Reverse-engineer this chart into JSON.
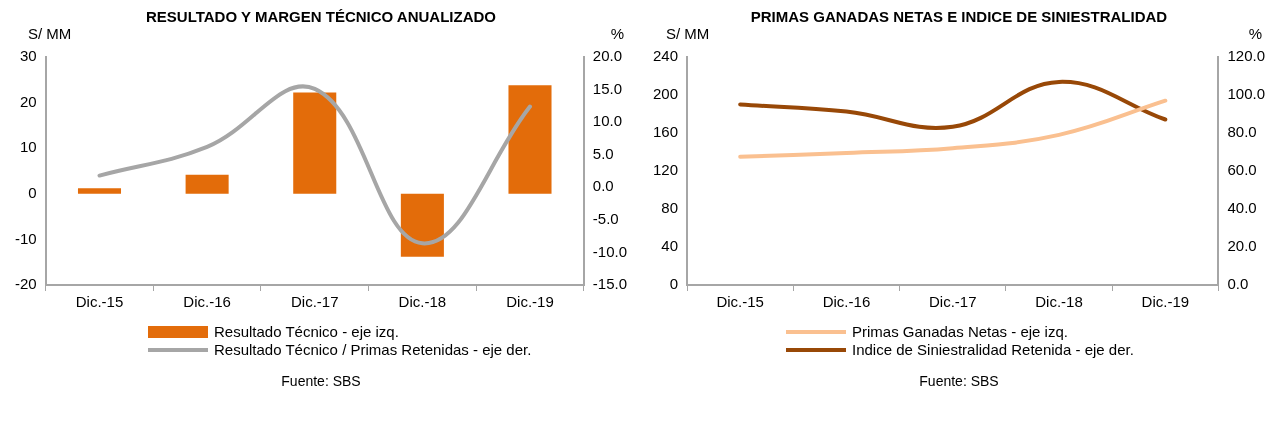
{
  "chart_data": [
    {
      "type": "bar",
      "title": "RESULTADO Y MARGEN TÉCNICO ANUALIZADO",
      "ylabel": "S/ MM",
      "y2label": "%",
      "categories": [
        "Dic.-15",
        "Dic.-16",
        "Dic.-17",
        "Dic.-18",
        "Dic.-19"
      ],
      "series": [
        {
          "name": "Resultado Técnico - eje izq.",
          "color": "#e36c0a",
          "values": [
            1.2,
            4.2,
            22.2,
            -13.8,
            23.8
          ]
        },
        {
          "name": "Resultado Técnico / Primas Retenidas - eje der.",
          "type": "line",
          "axis": "y2",
          "color": "#a6a6a6",
          "values": [
            1.8,
            6.2,
            15.1,
            -8.6,
            12.4
          ]
        }
      ],
      "ylim": [
        -20,
        30
      ],
      "yticks": [
        -20,
        -10,
        0,
        10,
        20,
        30
      ],
      "y2lim": [
        -15,
        20
      ],
      "y2ticks": [
        {
          "value": -15,
          "label": "-15.0"
        },
        {
          "value": -10,
          "label": "-10.0"
        },
        {
          "value": -5,
          "label": "-5.0"
        },
        {
          "value": 0,
          "label": "0.0"
        },
        {
          "value": 5,
          "label": "5.0"
        },
        {
          "value": 10,
          "label": "10.0"
        },
        {
          "value": 15,
          "label": "15.0"
        },
        {
          "value": 20,
          "label": "20.0"
        }
      ],
      "grid": false,
      "legend": "bottom",
      "annotations": [
        "Fuente: SBS"
      ]
    },
    {
      "type": "line",
      "title": "PRIMAS GANADAS NETAS E INDICE DE SINIESTRALIDAD",
      "ylabel": "S/ MM",
      "y2label": "%",
      "categories": [
        "Dic.-15",
        "Dic.-16",
        "Dic.-17",
        "Dic.-18",
        "Dic.-19"
      ],
      "series": [
        {
          "name": "Primas Ganadas Netas - eje izq.",
          "color": "#fac090",
          "values": [
            135,
            139,
            144,
            158,
            194
          ]
        },
        {
          "name": "Indice de Siniestralidad Retenida - eje der.",
          "axis": "y2",
          "color": "#984807",
          "values": [
            95,
            91.3,
            83.3,
            106.9,
            87.1
          ]
        }
      ],
      "ylim": [
        0,
        240
      ],
      "yticks": [
        0,
        40,
        80,
        120,
        160,
        200,
        240
      ],
      "y2lim": [
        0,
        120
      ],
      "y2ticks": [
        {
          "value": 0,
          "label": "0.0"
        },
        {
          "value": 20,
          "label": "20.0"
        },
        {
          "value": 40,
          "label": "40.0"
        },
        {
          "value": 60,
          "label": "60.0"
        },
        {
          "value": 80,
          "label": "80.0"
        },
        {
          "value": 100,
          "label": "100.0"
        },
        {
          "value": 120,
          "label": "120.0"
        }
      ],
      "grid": false,
      "legend": "bottom",
      "annotations": [
        "Fuente: SBS"
      ]
    }
  ]
}
